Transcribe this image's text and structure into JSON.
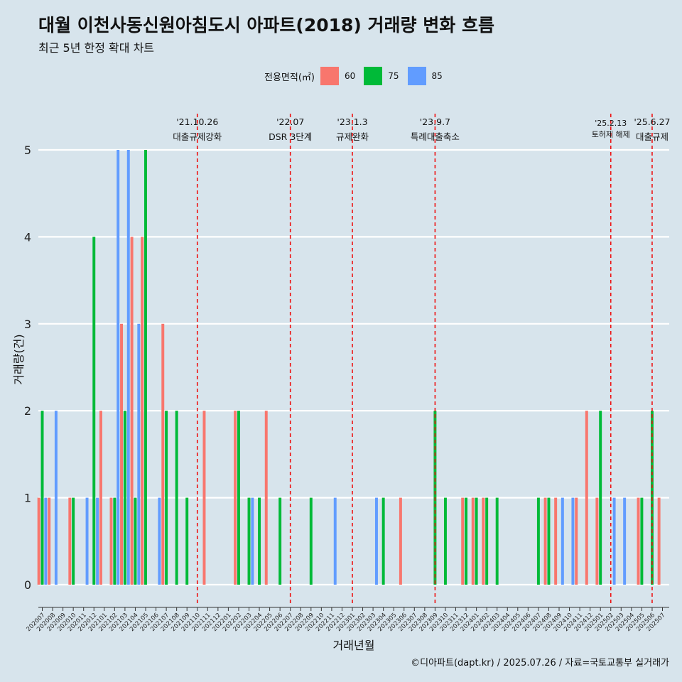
{
  "title": "대월 이천사동신원아침도시 아파트(2018) 거래량 변화 흐름",
  "subtitle": "최근 5년 한정 확대 차트",
  "caption": "©디아파트(dapt.kr) / 2025.07.26 / 자료=국토교통부 실거래가",
  "legend": {
    "title": "전용면적(㎡)",
    "items": [
      {
        "label": "60",
        "color": "#f8766d"
      },
      {
        "label": "75",
        "color": "#00ba38"
      },
      {
        "label": "85",
        "color": "#619cff"
      }
    ]
  },
  "chart_data": {
    "type": "bar",
    "xlabel": "거래년월",
    "ylabel": "거래량(건)",
    "ylim": [
      0,
      5
    ],
    "yticks": [
      0,
      1,
      2,
      3,
      4,
      5
    ],
    "grid": true,
    "legend_position": "top",
    "categories": [
      "202007",
      "202008",
      "202009",
      "202010",
      "202011",
      "202012",
      "202101",
      "202102",
      "202103",
      "202104",
      "202105",
      "202106",
      "202107",
      "202108",
      "202109",
      "202110",
      "202111",
      "202112",
      "202201",
      "202202",
      "202203",
      "202204",
      "202205",
      "202206",
      "202207",
      "202208",
      "202209",
      "202210",
      "202211",
      "202212",
      "202301",
      "202302",
      "202303",
      "202304",
      "202305",
      "202306",
      "202307",
      "202308",
      "202309",
      "202310",
      "202311",
      "202312",
      "202401",
      "202402",
      "202403",
      "202404",
      "202405",
      "202406",
      "202407",
      "202408",
      "202409",
      "202410",
      "202411",
      "202412",
      "202501",
      "202502",
      "202503",
      "202504",
      "202505",
      "202506",
      "202507"
    ],
    "series": [
      {
        "name": "60",
        "color": "#f8766d",
        "values": [
          1,
          1,
          0,
          1,
          0,
          0,
          2,
          1,
          3,
          4,
          4,
          0,
          3,
          0,
          0,
          0,
          2,
          0,
          0,
          2,
          0,
          0,
          2,
          0,
          0,
          0,
          0,
          0,
          0,
          0,
          0,
          0,
          0,
          0,
          0,
          1,
          0,
          0,
          0,
          0,
          0,
          1,
          1,
          1,
          0,
          0,
          0,
          0,
          0,
          1,
          1,
          0,
          1,
          2,
          1,
          0,
          0,
          0,
          1,
          0,
          1
        ]
      },
      {
        "name": "75",
        "color": "#00ba38",
        "values": [
          2,
          0,
          0,
          1,
          0,
          4,
          0,
          1,
          2,
          1,
          5,
          0,
          2,
          2,
          1,
          0,
          0,
          0,
          0,
          2,
          1,
          1,
          0,
          1,
          0,
          0,
          1,
          0,
          0,
          0,
          0,
          0,
          0,
          1,
          0,
          0,
          0,
          0,
          2,
          1,
          0,
          1,
          1,
          1,
          1,
          0,
          0,
          0,
          1,
          1,
          0,
          0,
          0,
          0,
          2,
          0,
          0,
          0,
          1,
          2,
          0
        ]
      },
      {
        "name": "85",
        "color": "#619cff",
        "values": [
          1,
          2,
          0,
          0,
          1,
          1,
          0,
          5,
          5,
          3,
          0,
          1,
          0,
          0,
          0,
          0,
          0,
          0,
          0,
          0,
          1,
          0,
          0,
          0,
          0,
          0,
          0,
          0,
          1,
          0,
          0,
          0,
          1,
          0,
          0,
          0,
          0,
          0,
          0,
          0,
          0,
          0,
          0,
          0,
          0,
          0,
          0,
          0,
          0,
          0,
          1,
          1,
          0,
          0,
          0,
          1,
          1,
          0,
          0,
          0,
          0
        ]
      }
    ],
    "annotations": [
      {
        "date": "'21.10.26",
        "text": "대출규제강화",
        "x": "202110"
      },
      {
        "date": "'22.07",
        "text": "DSR 3단계",
        "x": "202207"
      },
      {
        "date": "'23.1.3",
        "text": "규제완화",
        "x": "202301"
      },
      {
        "date": "'23.9.7",
        "text": "특례대출축소",
        "x": "202309"
      },
      {
        "date": "'25.2.13",
        "text": "토허제 해제",
        "x": "202502"
      },
      {
        "date": "'25.6.27",
        "text": "대출규제",
        "x": "202506"
      }
    ]
  }
}
